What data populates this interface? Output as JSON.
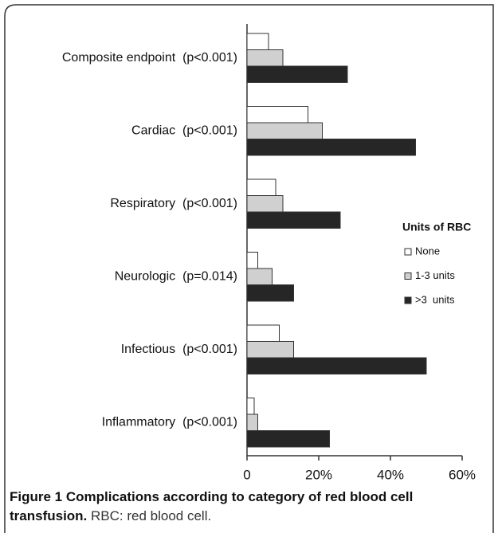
{
  "chart_data": {
    "type": "bar",
    "orientation": "horizontal",
    "categories": [
      "Composite endpoint  (p<0.001)",
      "Cardiac  (p<0.001)",
      "Respiratory  (p<0.001)",
      "Neurologic  (p=0.014)",
      "Infectious  (p<0.001)",
      "Inflammatory  (p<0.001)"
    ],
    "legend_title": "Units of RBC",
    "series": [
      {
        "name": "None",
        "color": "#ffffff",
        "values": [
          6,
          17,
          8,
          3,
          9,
          2
        ]
      },
      {
        "name": "1-3 units",
        "color": "#d0d0d0",
        "values": [
          10,
          21,
          10,
          7,
          13,
          3
        ]
      },
      {
        "name": ">3  units",
        "color": "#262626",
        "values": [
          28,
          47,
          26,
          13,
          50,
          23
        ]
      }
    ],
    "xlim": [
      0,
      60
    ],
    "xticks": [
      0,
      {
        "value": 20,
        "label": "20%"
      },
      {
        "value": 40,
        "label": "40%"
      },
      {
        "value": 60,
        "label": "60%"
      }
    ],
    "grid": false
  },
  "caption": {
    "label": "Figure 1",
    "title": "Complications according to category of red blood cell transfusion.",
    "text": "RBC: red blood cell."
  }
}
